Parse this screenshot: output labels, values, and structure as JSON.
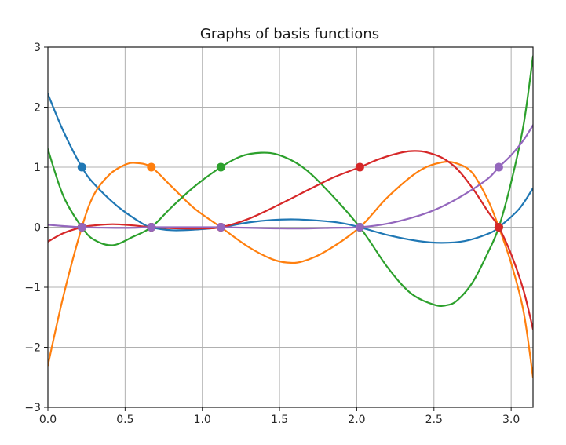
{
  "chart_data": {
    "type": "line",
    "title": "Graphs of basis functions",
    "xlabel": "",
    "ylabel": "",
    "xlim": [
      0.0,
      3.14159
    ],
    "ylim": [
      -3,
      3
    ],
    "grid": true,
    "legend": "none",
    "x_ticks": [
      "0.0",
      "0.5",
      "1.0",
      "1.5",
      "2.0",
      "2.5",
      "3.0"
    ],
    "y_ticks": [
      "3",
      "2",
      "1",
      "0",
      "−1",
      "−2",
      "−3"
    ],
    "x_tick_values": [
      0.0,
      0.5,
      1.0,
      1.5,
      2.0,
      2.5,
      3.0
    ],
    "y_tick_values": [
      3,
      2,
      1,
      0,
      -1,
      -2,
      -3
    ],
    "nodes": [
      0.22,
      0.67,
      1.12,
      2.02,
      2.92
    ],
    "series": [
      {
        "color": "#1f77b4",
        "x": [
          0.0,
          0.1,
          0.22,
          0.3,
          0.45,
          0.6,
          0.67,
          0.8,
          0.95,
          1.12,
          1.3,
          1.45,
          1.6,
          1.75,
          1.9,
          2.02,
          2.2,
          2.4,
          2.55,
          2.7,
          2.85,
          2.92,
          3.05,
          3.14159
        ],
        "y": [
          2.22,
          1.6,
          1.0,
          0.72,
          0.35,
          0.08,
          0.0,
          -0.05,
          -0.04,
          0.0,
          0.08,
          0.12,
          0.13,
          0.11,
          0.07,
          0.0,
          -0.13,
          -0.23,
          -0.26,
          -0.23,
          -0.11,
          0.0,
          0.3,
          0.65
        ],
        "markers": [
          {
            "x": 0.22,
            "y": 1
          }
        ]
      },
      {
        "color": "#ff7f0e",
        "x": [
          0.0,
          0.1,
          0.22,
          0.3,
          0.4,
          0.5,
          0.57,
          0.67,
          0.8,
          0.95,
          1.12,
          1.3,
          1.45,
          1.55,
          1.65,
          1.8,
          2.02,
          2.2,
          2.4,
          2.55,
          2.65,
          2.75,
          2.85,
          2.92,
          3.0,
          3.08,
          3.14159
        ],
        "y": [
          -2.3,
          -1.15,
          0.0,
          0.55,
          0.88,
          1.04,
          1.07,
          1.0,
          0.68,
          0.31,
          0.0,
          -0.33,
          -0.53,
          -0.59,
          -0.57,
          -0.4,
          0.0,
          0.5,
          0.93,
          1.08,
          1.06,
          0.9,
          0.45,
          0.0,
          -0.6,
          -1.4,
          -2.5
        ],
        "markers": [
          {
            "x": 0.67,
            "y": 1
          }
        ]
      },
      {
        "color": "#2ca02c",
        "x": [
          0.0,
          0.1,
          0.22,
          0.3,
          0.42,
          0.55,
          0.67,
          0.8,
          0.95,
          1.12,
          1.25,
          1.38,
          1.5,
          1.65,
          1.8,
          2.02,
          2.2,
          2.35,
          2.5,
          2.58,
          2.65,
          2.75,
          2.85,
          2.92,
          3.0,
          3.08,
          3.14159
        ],
        "y": [
          1.3,
          0.52,
          0.0,
          -0.21,
          -0.3,
          -0.16,
          0.0,
          0.33,
          0.68,
          1.0,
          1.18,
          1.24,
          1.2,
          1.0,
          0.64,
          0.0,
          -0.67,
          -1.1,
          -1.29,
          -1.3,
          -1.22,
          -0.92,
          -0.42,
          0.0,
          0.75,
          1.7,
          2.85
        ],
        "markers": [
          {
            "x": 1.12,
            "y": 1
          }
        ]
      },
      {
        "color": "#d62728",
        "x": [
          0.0,
          0.1,
          0.22,
          0.3,
          0.42,
          0.55,
          0.67,
          0.85,
          1.0,
          1.12,
          1.3,
          1.5,
          1.7,
          1.85,
          2.02,
          2.15,
          2.3,
          2.38,
          2.45,
          2.55,
          2.65,
          2.75,
          2.85,
          2.92,
          3.0,
          3.08,
          3.14159
        ],
        "y": [
          -0.24,
          -0.1,
          0.0,
          0.03,
          0.05,
          0.03,
          0.0,
          -0.02,
          -0.02,
          0.0,
          0.14,
          0.38,
          0.64,
          0.83,
          1.0,
          1.14,
          1.25,
          1.27,
          1.25,
          1.16,
          0.97,
          0.65,
          0.26,
          0.0,
          -0.45,
          -1.05,
          -1.7
        ],
        "markers": [
          {
            "x": 2.02,
            "y": 1
          }
        ]
      },
      {
        "color": "#9467bd",
        "x": [
          0.0,
          0.1,
          0.22,
          0.4,
          0.55,
          0.67,
          0.85,
          1.0,
          1.12,
          1.3,
          1.5,
          1.7,
          1.85,
          2.02,
          2.2,
          2.4,
          2.55,
          2.7,
          2.85,
          2.92,
          3.0,
          3.08,
          3.14159
        ],
        "y": [
          0.04,
          0.02,
          0.0,
          -0.01,
          -0.01,
          0.0,
          0.0,
          0.0,
          0.0,
          -0.01,
          -0.02,
          -0.02,
          -0.01,
          0.0,
          0.06,
          0.19,
          0.34,
          0.55,
          0.81,
          1.0,
          1.2,
          1.45,
          1.7
        ],
        "markers": [
          {
            "x": 2.92,
            "y": 1
          }
        ]
      }
    ]
  }
}
